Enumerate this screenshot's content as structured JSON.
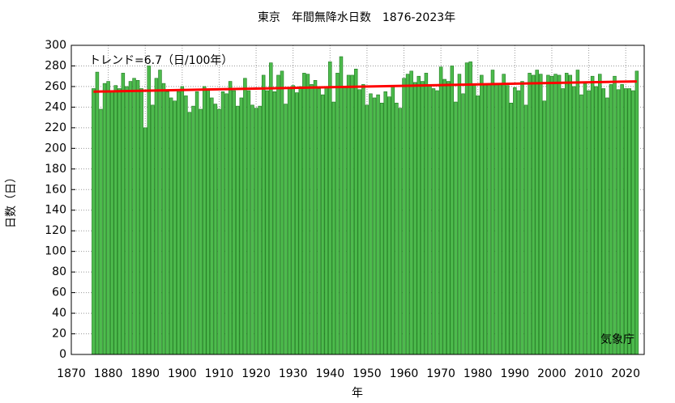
{
  "chart_data": {
    "type": "bar",
    "title": "東京　年間無降水日数　1876-2023年",
    "xlabel": "年",
    "ylabel": "日数（日）",
    "annotations": [
      "トレンド=6.7（日/100年）",
      "気象庁"
    ],
    "color": "#4dbb4d",
    "edgecolor": "#1e7a1e",
    "grid": true,
    "x": [
      1876,
      1877,
      1878,
      1879,
      1880,
      1881,
      1882,
      1883,
      1884,
      1885,
      1886,
      1887,
      1888,
      1889,
      1890,
      1891,
      1892,
      1893,
      1894,
      1895,
      1896,
      1897,
      1898,
      1899,
      1900,
      1901,
      1902,
      1903,
      1904,
      1905,
      1906,
      1907,
      1908,
      1909,
      1910,
      1911,
      1912,
      1913,
      1914,
      1915,
      1916,
      1917,
      1918,
      1919,
      1920,
      1921,
      1922,
      1923,
      1924,
      1925,
      1926,
      1927,
      1928,
      1929,
      1930,
      1931,
      1932,
      1933,
      1934,
      1935,
      1936,
      1937,
      1938,
      1939,
      1940,
      1941,
      1942,
      1943,
      1944,
      1945,
      1946,
      1947,
      1948,
      1949,
      1950,
      1951,
      1952,
      1953,
      1954,
      1955,
      1956,
      1957,
      1958,
      1959,
      1960,
      1961,
      1962,
      1963,
      1964,
      1965,
      1966,
      1967,
      1968,
      1969,
      1970,
      1971,
      1972,
      1973,
      1974,
      1975,
      1976,
      1977,
      1978,
      1979,
      1980,
      1981,
      1982,
      1983,
      1984,
      1985,
      1986,
      1987,
      1988,
      1989,
      1990,
      1991,
      1992,
      1993,
      1994,
      1995,
      1996,
      1997,
      1998,
      1999,
      2000,
      2001,
      2002,
      2003,
      2004,
      2005,
      2006,
      2007,
      2008,
      2009,
      2010,
      2011,
      2012,
      2013,
      2014,
      2015,
      2016,
      2017,
      2018,
      2019,
      2020,
      2021,
      2022,
      2023
    ],
    "values": [
      258,
      274,
      238,
      263,
      265,
      255,
      261,
      258,
      273,
      260,
      265,
      268,
      266,
      258,
      220,
      280,
      242,
      268,
      276,
      263,
      255,
      249,
      246,
      255,
      260,
      251,
      235,
      241,
      255,
      238,
      260,
      257,
      249,
      243,
      238,
      255,
      253,
      265,
      256,
      241,
      249,
      268,
      256,
      242,
      239,
      241,
      271,
      256,
      283,
      255,
      271,
      275,
      243,
      258,
      261,
      254,
      260,
      273,
      272,
      262,
      266,
      258,
      252,
      260,
      284,
      245,
      273,
      289,
      259,
      271,
      271,
      277,
      257,
      262,
      242,
      253,
      249,
      252,
      244,
      255,
      250,
      260,
      244,
      239,
      268,
      272,
      275,
      264,
      270,
      265,
      273,
      262,
      258,
      256,
      279,
      267,
      265,
      280,
      245,
      272,
      253,
      283,
      284,
      262,
      251,
      271,
      262,
      263,
      276,
      262,
      263,
      272,
      261,
      244,
      259,
      256,
      265,
      242,
      273,
      271,
      276,
      272,
      246,
      271,
      270,
      272,
      271,
      258,
      273,
      271,
      260,
      276,
      252,
      263,
      256,
      270,
      260,
      272,
      258,
      249,
      262,
      270,
      257,
      262,
      258,
      258,
      256,
      275
    ],
    "trend": {
      "color": "#ff0000",
      "x": [
        1876,
        2023
      ],
      "values": [
        255,
        265
      ]
    },
    "xlim": [
      1870,
      2025
    ],
    "xticks": [
      1870,
      1880,
      1890,
      1900,
      1910,
      1920,
      1930,
      1940,
      1950,
      1960,
      1970,
      1980,
      1990,
      2000,
      2010,
      2020
    ],
    "ylim": [
      0,
      300
    ],
    "yticks": [
      0,
      20,
      40,
      60,
      80,
      100,
      120,
      140,
      160,
      180,
      200,
      220,
      240,
      260,
      280,
      300
    ]
  }
}
